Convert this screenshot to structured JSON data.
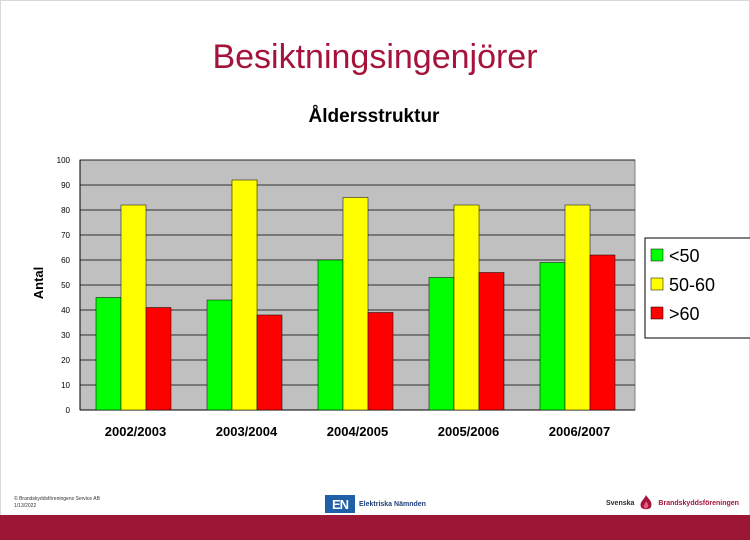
{
  "slide": {
    "title": "Besiktningsingenjörer",
    "copyright": "© Brandskyddsföreningens Service AB",
    "date": "1/13/2022",
    "logo_en_mark": "EN",
    "logo_en_text": "Elektriska Nämnden",
    "logo_sb_text1": "Svenska",
    "logo_sb_text2": "Brandskyddsföreningen"
  },
  "chart_data": {
    "type": "bar",
    "title": "Åldersstruktur",
    "ylabel": "Antal",
    "xlabel": "",
    "ylim": [
      0,
      100
    ],
    "yticks": [
      0,
      10,
      20,
      30,
      40,
      50,
      60,
      70,
      80,
      90,
      100
    ],
    "grid": true,
    "legend_position": "right",
    "categories": [
      "2002/2003",
      "2003/2004",
      "2004/2005",
      "2005/2006",
      "2006/2007"
    ],
    "series": [
      {
        "name": "<50",
        "color": "#00ff00",
        "values": [
          45,
          44,
          60,
          53,
          59
        ]
      },
      {
        "name": "50-60",
        "color": "#ffff00",
        "values": [
          82,
          92,
          85,
          82,
          82
        ]
      },
      {
        "name": ">60",
        "color": "#ff0000",
        "values": [
          41,
          38,
          39,
          55,
          62
        ]
      }
    ],
    "plot_background": "#c0c0c0"
  }
}
